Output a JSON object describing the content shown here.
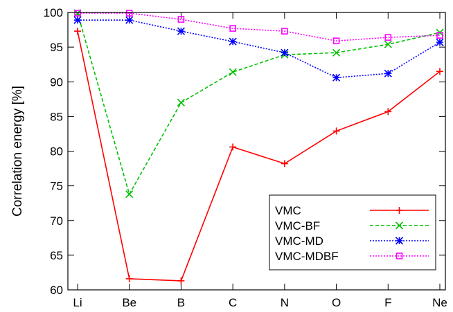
{
  "chart_data": {
    "type": "line",
    "title": "",
    "xlabel": "",
    "ylabel": "Correlation energy [%]",
    "categories": [
      "Li",
      "Be",
      "B",
      "C",
      "N",
      "O",
      "F",
      "Ne"
    ],
    "ylim": [
      60,
      100
    ],
    "yticks": [
      60,
      65,
      70,
      75,
      80,
      85,
      90,
      95,
      100
    ],
    "grid": false,
    "legend_position": "bottom-right",
    "series": [
      {
        "name": "VMC",
        "color": "#ff0000",
        "dash": "solid",
        "marker": "plus",
        "values": [
          97.3,
          61.6,
          61.3,
          80.6,
          78.2,
          82.9,
          85.7,
          91.5
        ]
      },
      {
        "name": "VMC-BF",
        "color": "#00c000",
        "dash": "dashed",
        "marker": "cross",
        "values": [
          99.9,
          73.8,
          87.0,
          91.4,
          93.9,
          94.2,
          95.4,
          97.1
        ]
      },
      {
        "name": "VMC-MD",
        "color": "#0000ff",
        "dash": "dotted",
        "marker": "star",
        "values": [
          98.9,
          98.9,
          97.3,
          95.8,
          94.2,
          90.6,
          91.2,
          95.7
        ]
      },
      {
        "name": "VMC-MDBF",
        "color": "#ff00ff",
        "dash": "dotted",
        "marker": "square",
        "values": [
          99.9,
          99.9,
          99.0,
          97.7,
          97.3,
          95.9,
          96.4,
          96.7
        ]
      }
    ]
  }
}
